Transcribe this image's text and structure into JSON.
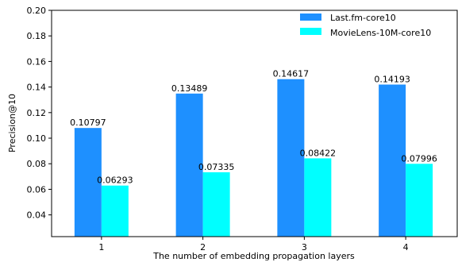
{
  "chart_data": {
    "type": "bar",
    "categories": [
      "1",
      "2",
      "3",
      "4"
    ],
    "series": [
      {
        "name": "Last.fm-core10",
        "color": "#1e90ff",
        "values": [
          0.10797,
          0.13489,
          0.14617,
          0.14193
        ],
        "labels": [
          "0.10797",
          "0.13489",
          "0.14617",
          "0.14193"
        ]
      },
      {
        "name": "MovieLens-10M-core10",
        "color": "#00ffff",
        "values": [
          0.06293,
          0.07335,
          0.08422,
          0.07996
        ],
        "labels": [
          "0.06293",
          "0.07335",
          "0.08422",
          "0.07996"
        ]
      }
    ],
    "xlabel": "The number of embedding propagation layers",
    "ylabel": "Precision@10",
    "ylim": [
      0.023,
      0.2
    ],
    "yticks": [
      0.04,
      0.06,
      0.08,
      0.1,
      0.12,
      0.14,
      0.16,
      0.18,
      0.2
    ],
    "ytick_labels": [
      "0.04",
      "0.06",
      "0.08",
      "0.10",
      "0.12",
      "0.14",
      "0.16",
      "0.18",
      "0.20"
    ],
    "grid": false,
    "legend_position": "top-right"
  }
}
